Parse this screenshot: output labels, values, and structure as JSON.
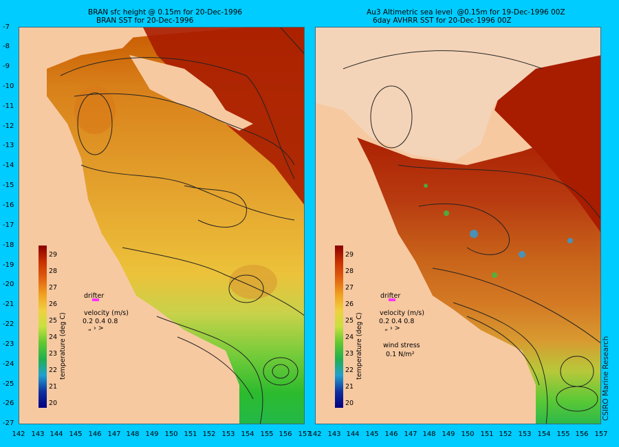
{
  "left_panel": {
    "title_line1": "BRAN sfc height @ 0.15m for 20-Dec-1996",
    "title_line2": "BRAN SST for 20-Dec-1996"
  },
  "right_panel": {
    "title_line1": "Au3 Altimetric sea level  @0.15m for 19-Dec-1996 00Z",
    "title_line2": "6day AVHRR SST for 20-Dec-1996 00Z"
  },
  "y_axis": [
    "-7",
    "-8",
    "-9",
    "-10",
    "-11",
    "-12",
    "-13",
    "-14",
    "-15",
    "-16",
    "-17",
    "-18",
    "-19",
    "-20",
    "-21",
    "-22",
    "-23",
    "-24",
    "-25",
    "-26",
    "-27"
  ],
  "x_axis_left": [
    "142",
    "143",
    "144",
    "145",
    "146",
    "147",
    "148",
    "149",
    "150",
    "151",
    "152",
    "153",
    "154",
    "155",
    "156",
    "157"
  ],
  "x_axis_right": [
    "142",
    "143",
    "144",
    "145",
    "146",
    "147",
    "148",
    "149",
    "150",
    "151",
    "152",
    "153",
    "154",
    "155",
    "156",
    "157"
  ],
  "colorbar": {
    "title": "temperature (deg C)",
    "labels": [
      "29",
      "28",
      "27",
      "26",
      "25",
      "24",
      "23",
      "22",
      "21",
      "20"
    ]
  },
  "legend": {
    "drifter": "drifter",
    "velocity_title": "velocity (m/s)",
    "velocity_values": "0.2 0.4 0.8",
    "wind_title": "wind stress",
    "wind_value": "0.1 N/m²"
  },
  "credit": "CSIRO Marine Research",
  "colors": {
    "land": "#f7c9a1",
    "background": "#00ccff",
    "drifter": "#ff33ff"
  }
}
